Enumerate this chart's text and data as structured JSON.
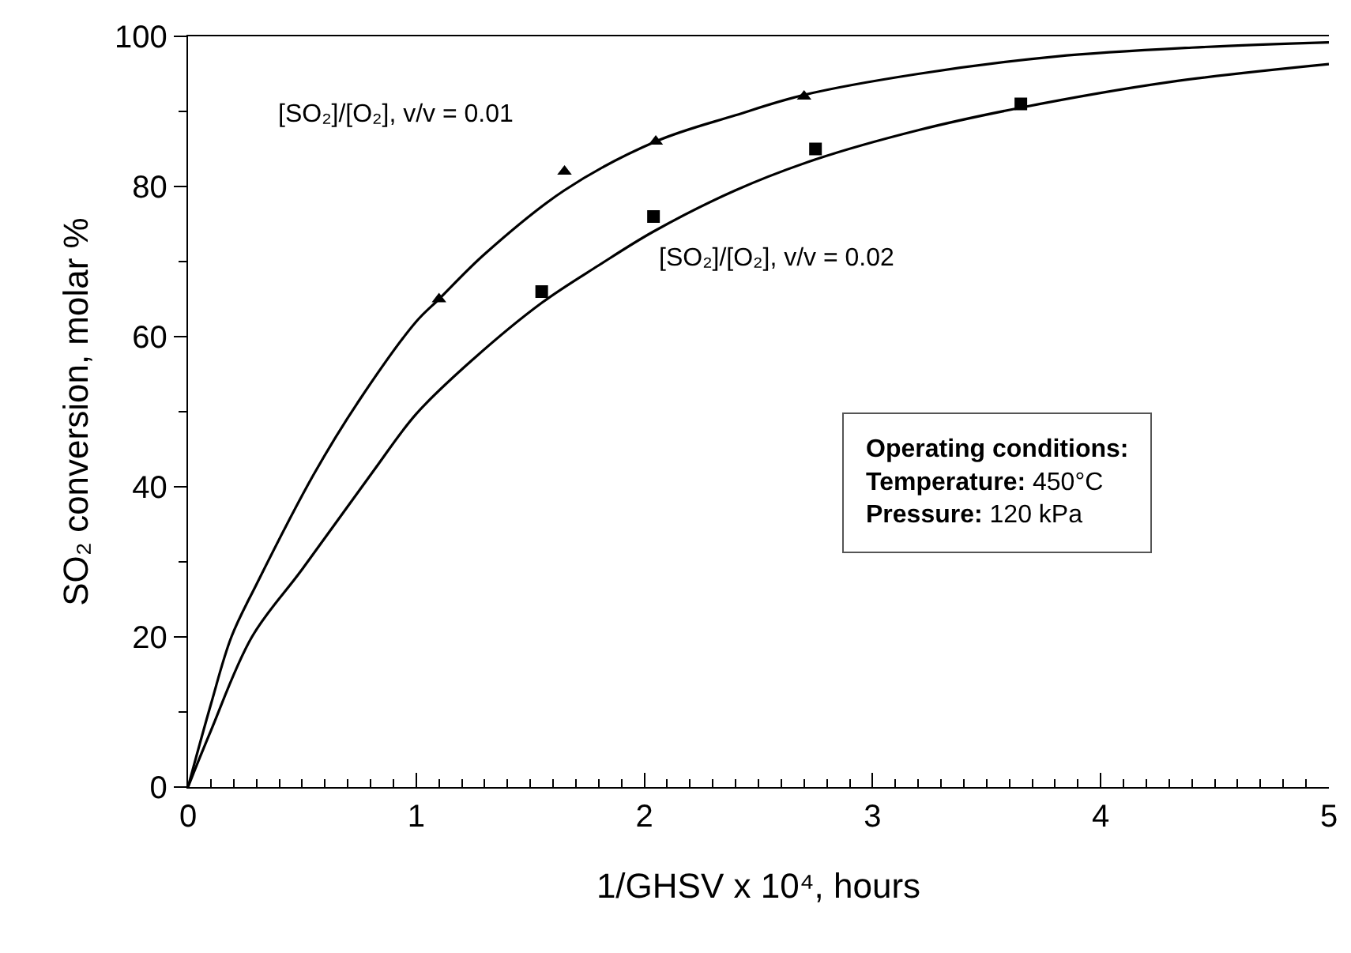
{
  "chart_data": {
    "type": "scatter",
    "xlabel": "1/GHSV x 10⁴, hours",
    "ylabel": "SO₂ conversion, molar %",
    "xlim": [
      0,
      5
    ],
    "ylim": [
      0,
      100
    ],
    "xticks": [
      0,
      {
        "value": 0.1,
        "label": null
      },
      {
        "value": 0.2,
        "label": null
      },
      {
        "value": 0.3,
        "label": null
      },
      {
        "value": 0.4,
        "label": null
      },
      {
        "value": 0.5,
        "label": null
      },
      {
        "value": 0.6,
        "label": null
      },
      {
        "value": 0.7,
        "label": null
      },
      {
        "value": 0.8,
        "label": null
      },
      {
        "value": 0.9,
        "label": null
      },
      1,
      {
        "value": 1.1,
        "label": null
      },
      {
        "value": 1.2,
        "label": null
      },
      {
        "value": 1.3,
        "label": null
      },
      {
        "value": 1.4,
        "label": null
      },
      {
        "value": 1.5,
        "label": null
      },
      {
        "value": 1.6,
        "label": null
      },
      {
        "value": 1.7,
        "label": null
      },
      {
        "value": 1.8,
        "label": null
      },
      {
        "value": 1.9,
        "label": null
      },
      2,
      {
        "value": 2.1,
        "label": null
      },
      {
        "value": 2.2,
        "label": null
      },
      {
        "value": 2.3,
        "label": null
      },
      {
        "value": 2.4,
        "label": null
      },
      {
        "value": 2.5,
        "label": null
      },
      {
        "value": 2.6,
        "label": null
      },
      {
        "value": 2.7,
        "label": null
      },
      {
        "value": 2.8,
        "label": null
      },
      {
        "value": 2.9,
        "label": null
      },
      3,
      {
        "value": 3.1,
        "label": null
      },
      {
        "value": 3.2,
        "label": null
      },
      {
        "value": 3.3,
        "label": null
      },
      {
        "value": 3.4,
        "label": null
      },
      {
        "value": 3.5,
        "label": null
      },
      {
        "value": 3.6,
        "label": null
      },
      {
        "value": 3.7,
        "label": null
      },
      {
        "value": 3.8,
        "label": null
      },
      {
        "value": 3.9,
        "label": null
      },
      4,
      {
        "value": 4.1,
        "label": null
      },
      {
        "value": 4.2,
        "label": null
      },
      {
        "value": 4.3,
        "label": null
      },
      {
        "value": 4.4,
        "label": null
      },
      {
        "value": 4.5,
        "label": null
      },
      {
        "value": 4.6,
        "label": null
      },
      {
        "value": 4.7,
        "label": null
      },
      {
        "value": 4.8,
        "label": null
      },
      {
        "value": 4.9,
        "label": null
      },
      5
    ],
    "yticks": [
      0,
      {
        "value": 10,
        "label": null
      },
      20,
      {
        "value": 30,
        "label": null
      },
      40,
      {
        "value": 50,
        "label": null
      },
      60,
      {
        "value": 70,
        "label": null
      },
      80,
      {
        "value": 90,
        "label": null
      },
      100
    ],
    "series": [
      {
        "marker": "triangle",
        "color": "#000000",
        "x": [
          1.1,
          1.65,
          2.05,
          2.7
        ],
        "values": [
          65,
          82,
          86,
          92
        ]
      },
      {
        "marker": "square",
        "color": "#000000",
        "x": [
          1.55,
          2.04,
          2.75,
          3.65
        ],
        "values": [
          66,
          76,
          85,
          91
        ]
      },
      {
        "type": "line",
        "marker": "none",
        "line_style": "solid",
        "color": "#000000",
        "x": [
          0,
          0.1,
          0.19,
          0.3,
          0.55,
          0.75,
          1.0,
          1.1,
          1.3,
          1.65,
          2.05,
          2.4,
          2.7,
          3.2,
          3.8,
          4.4,
          5
        ],
        "values": [
          0,
          11,
          20,
          27,
          41.6,
          51.5,
          62,
          65,
          71,
          79.5,
          86,
          89.5,
          92.2,
          95,
          97.3,
          98.5,
          99.2
        ]
      },
      {
        "type": "line",
        "marker": "none",
        "line_style": "solid",
        "color": "#000000",
        "x": [
          0,
          0.1,
          0.28,
          0.5,
          0.81,
          1.0,
          1.25,
          1.55,
          1.8,
          2.04,
          2.4,
          2.75,
          3.2,
          3.65,
          4.3,
          5
        ],
        "values": [
          0,
          7.5,
          20,
          29,
          42,
          49.7,
          57,
          64.5,
          69.5,
          74,
          79.5,
          83.6,
          87.5,
          90.5,
          93.9,
          96.3
        ]
      }
    ],
    "annotations": [
      "[SO₂]/[O₂], v/v = 0.01",
      "[SO₂]/[O₂], v/v = 0.02",
      "Operating conditions:\nTemperature: 450°C\nPressure: 120 kPa"
    ]
  }
}
